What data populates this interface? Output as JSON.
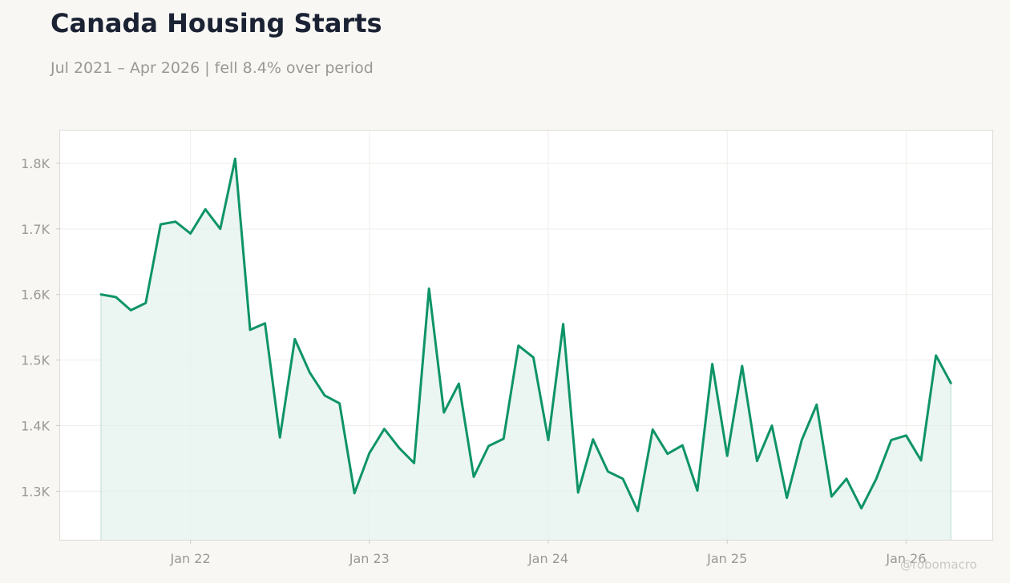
{
  "header": {
    "title": "Canada Housing Starts",
    "subtitle": "Jul 2021 – Apr 2026 | fell 8.4% over period"
  },
  "credit": "@robomacro",
  "chart_data": {
    "type": "area",
    "title": "Canada Housing Starts",
    "subtitle": "Jul 2021 – Apr 2026 | fell 8.4% over period",
    "xlabel": "",
    "ylabel": "",
    "x_start": "2021-07",
    "x_end": "2026-04",
    "ylim": [
      1226,
      1850
    ],
    "y_ticks": [
      1300,
      1400,
      1500,
      1600,
      1700,
      1800
    ],
    "y_tick_labels": [
      "1.3K",
      "1.4K",
      "1.5K",
      "1.6K",
      "1.7K",
      "1.8K"
    ],
    "x_ticks": [
      "2022-01",
      "2023-01",
      "2024-01",
      "2025-01",
      "2026-01"
    ],
    "x_tick_labels": [
      "Jan 22",
      "Jan 23",
      "Jan 24",
      "Jan 25",
      "Jan 26"
    ],
    "grid": true,
    "line_color": "#0e9467",
    "fill_color": "#e4f2ec",
    "series": [
      {
        "x": [
          "2021-07",
          "2021-08",
          "2021-09",
          "2021-10",
          "2021-11",
          "2021-12",
          "2022-01",
          "2022-02",
          "2022-03",
          "2022-04",
          "2022-05",
          "2022-06",
          "2022-07",
          "2022-08",
          "2022-09",
          "2022-10",
          "2022-11",
          "2022-12",
          "2023-01",
          "2023-02",
          "2023-03",
          "2023-04",
          "2023-05",
          "2023-06",
          "2023-07",
          "2023-08",
          "2023-09",
          "2023-10",
          "2023-11",
          "2023-12",
          "2024-01",
          "2024-02",
          "2024-03",
          "2024-04",
          "2024-05",
          "2024-06",
          "2024-07",
          "2024-08",
          "2024-09",
          "2024-10",
          "2024-11",
          "2024-12",
          "2025-01",
          "2025-02",
          "2025-03",
          "2025-04",
          "2025-05",
          "2025-06",
          "2025-07",
          "2025-08",
          "2025-09",
          "2025-10",
          "2025-11",
          "2025-12",
          "2026-01",
          "2026-02",
          "2026-03",
          "2026-04"
        ],
        "values": [
          1600,
          1596,
          1576,
          1587,
          1707,
          1711,
          1693,
          1730,
          1700,
          1807,
          1546,
          1556,
          1382,
          1532,
          1481,
          1446,
          1434,
          1297,
          1358,
          1395,
          1366,
          1343,
          1609,
          1420,
          1464,
          1322,
          1369,
          1380,
          1522,
          1504,
          1378,
          1555,
          1298,
          1379,
          1330,
          1319,
          1270,
          1394,
          1357,
          1370,
          1301,
          1494,
          1354,
          1491,
          1346,
          1400,
          1290,
          1378,
          1432,
          1292,
          1319,
          1274,
          1319,
          1378,
          1385,
          1347,
          1507,
          1465
        ]
      }
    ]
  }
}
